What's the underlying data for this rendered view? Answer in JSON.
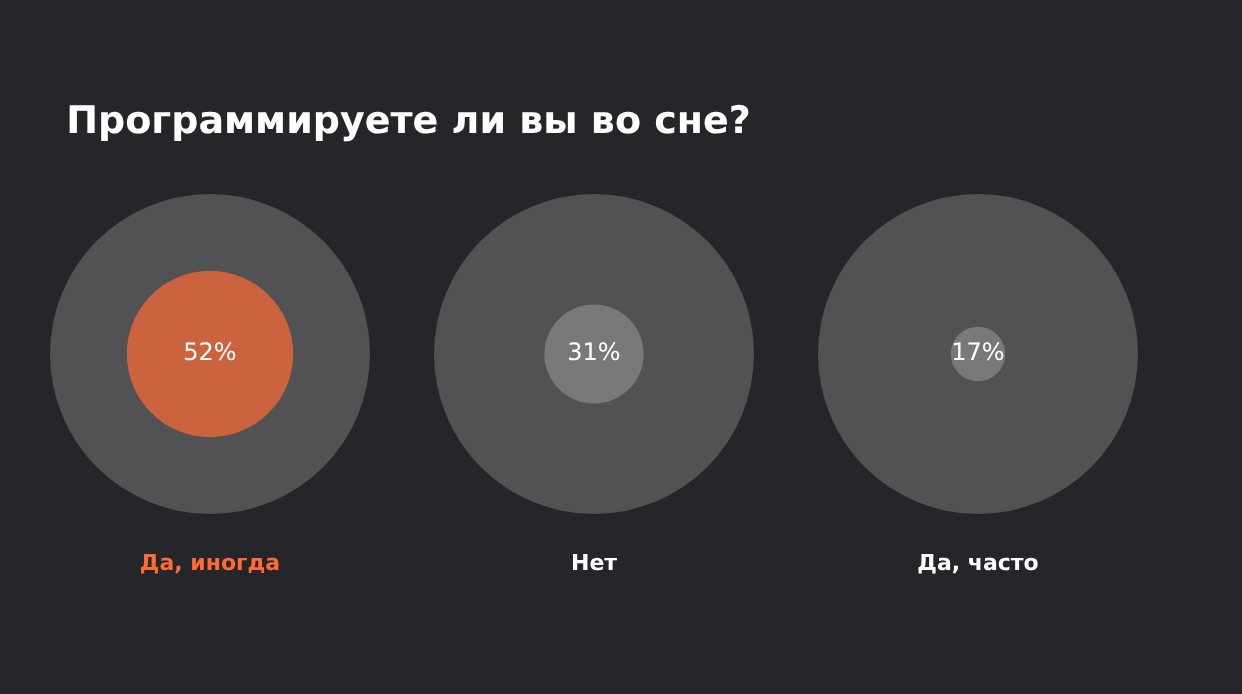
{
  "chart_data": {
    "type": "other",
    "title": "Программируете ли вы во сне?",
    "categories": [
      "Да, иногда",
      "Нет",
      "Да, часто"
    ],
    "values": [
      52,
      31,
      17
    ],
    "colors": [
      "#ff6b35",
      "#8a8a8c",
      "#8a8a8c"
    ],
    "value_labels": [
      "52%",
      "31%",
      "17%"
    ]
  }
}
